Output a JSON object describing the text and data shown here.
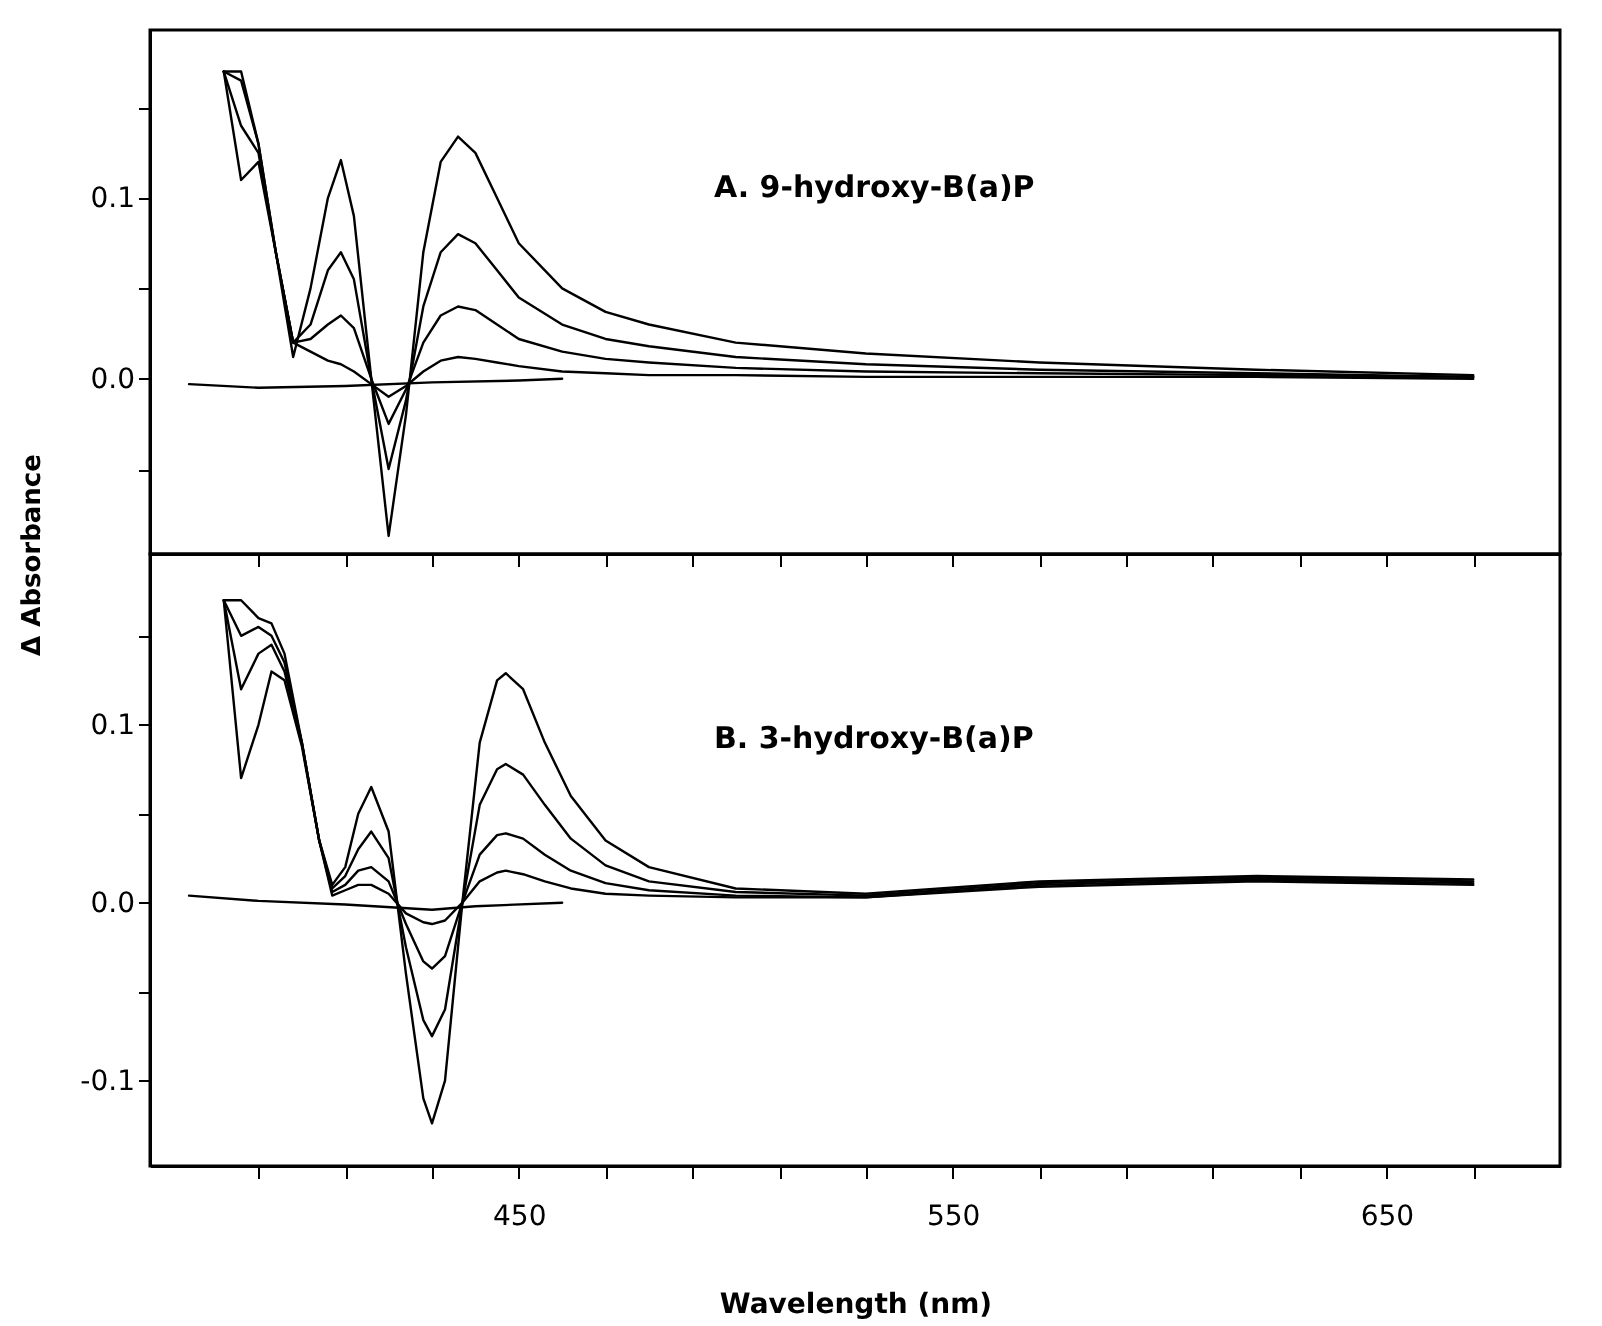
{
  "chart_data": [
    {
      "type": "line",
      "ylabel": "Δ Absorbance",
      "annotations": [
        "A. 9-hydroxy-B(a)P"
      ],
      "xlim": [
        365,
        690
      ],
      "ylim": [
        -0.097,
        0.193
      ],
      "xticks": [
        {
          "value": 390,
          "label": null
        },
        {
          "value": 410,
          "label": null
        },
        {
          "value": 430,
          "label": null
        },
        {
          "value": 450,
          "label": null
        },
        {
          "value": 470,
          "label": null
        },
        {
          "value": 490,
          "label": null
        },
        {
          "value": 510,
          "label": null
        },
        {
          "value": 530,
          "label": null
        },
        {
          "value": 550,
          "label": null
        },
        {
          "value": 570,
          "label": null
        },
        {
          "value": 590,
          "label": null
        },
        {
          "value": 610,
          "label": null
        },
        {
          "value": 630,
          "label": null
        },
        {
          "value": 650,
          "label": null
        },
        {
          "value": 670,
          "label": null
        }
      ],
      "yticks": [
        {
          "value": -0.05,
          "label": null
        },
        {
          "value": 0,
          "label": "0.0"
        },
        {
          "value": 0.05,
          "label": null
        },
        {
          "value": 0.1,
          "label": "0.1"
        },
        {
          "value": 0.15,
          "label": null
        }
      ],
      "tick_labels": "y",
      "grid": false,
      "line_style": "solid",
      "x": [
        382,
        386,
        390,
        394,
        398,
        402,
        406,
        409,
        412,
        416,
        420,
        424,
        428,
        432,
        436,
        440,
        445,
        450,
        460,
        470,
        480,
        500,
        530,
        570,
        620,
        670
      ],
      "series": [
        {
          "color": "#000000",
          "x": [
            374,
            390,
            410,
            430,
            450,
            460
          ],
          "values": [
            -0.003,
            -0.005,
            -0.004,
            -0.002,
            -0.001,
            0
          ]
        },
        {
          "color": "#000000",
          "values": [
            0.17,
            0.11,
            0.12,
            0.07,
            0.02,
            0.015,
            0.01,
            0.008,
            0.004,
            -0.003,
            -0.01,
            -0.004,
            0.004,
            0.01,
            0.012,
            0.011,
            0.009,
            0.007,
            0.004,
            0.003,
            0.002,
            0.002,
            0.001,
            0.001,
            0.001,
            0.0
          ]
        },
        {
          "color": "#000000",
          "values": [
            0.17,
            0.14,
            0.125,
            0.07,
            0.02,
            0.022,
            0.03,
            0.035,
            0.028,
            0.0,
            -0.025,
            -0.006,
            0.02,
            0.035,
            0.04,
            0.038,
            0.03,
            0.022,
            0.015,
            0.011,
            0.009,
            0.006,
            0.004,
            0.003,
            0.002,
            0.001
          ]
        },
        {
          "color": "#000000",
          "values": [
            0.17,
            0.165,
            0.13,
            0.07,
            0.02,
            0.03,
            0.06,
            0.07,
            0.055,
            0.0,
            -0.05,
            -0.012,
            0.04,
            0.07,
            0.08,
            0.075,
            0.06,
            0.045,
            0.03,
            0.022,
            0.018,
            0.012,
            0.008,
            0.005,
            0.003,
            0.001
          ]
        },
        {
          "color": "#000000",
          "values": [
            0.17,
            0.17,
            0.13,
            0.07,
            0.012,
            0.05,
            0.1,
            0.121,
            0.09,
            0.0,
            -0.087,
            -0.02,
            0.07,
            0.12,
            0.134,
            0.125,
            0.1,
            0.075,
            0.05,
            0.037,
            0.03,
            0.02,
            0.014,
            0.009,
            0.005,
            0.002
          ]
        }
      ]
    },
    {
      "type": "line",
      "xlabel": "Wavelength (nm)",
      "annotations": [
        "B. 3-hydroxy-B(a)P"
      ],
      "xlim": [
        365,
        690
      ],
      "ylim": [
        -0.148,
        0.196
      ],
      "xticks": [
        {
          "value": 390,
          "label": null
        },
        {
          "value": 410,
          "label": null
        },
        {
          "value": 430,
          "label": null
        },
        450,
        {
          "value": 470,
          "label": null
        },
        {
          "value": 490,
          "label": null
        },
        {
          "value": 510,
          "label": null
        },
        {
          "value": 530,
          "label": null
        },
        550,
        {
          "value": 570,
          "label": null
        },
        {
          "value": 590,
          "label": null
        },
        {
          "value": 610,
          "label": null
        },
        {
          "value": 630,
          "label": null
        },
        650,
        {
          "value": 670,
          "label": null
        }
      ],
      "yticks": [
        {
          "value": -0.1,
          "label": "-0.1"
        },
        {
          "value": -0.05,
          "label": null
        },
        {
          "value": 0,
          "label": "0.0"
        },
        {
          "value": 0.05,
          "label": null
        },
        {
          "value": 0.1,
          "label": "0.1"
        },
        {
          "value": 0.15,
          "label": null
        }
      ],
      "grid": false,
      "line_style": "solid",
      "x": [
        382,
        386,
        390,
        393,
        396,
        400,
        404,
        407,
        410,
        413,
        416,
        420,
        424,
        428,
        430,
        433,
        437,
        441,
        445,
        447,
        451,
        456,
        462,
        470,
        480,
        500,
        530,
        570,
        620,
        670
      ],
      "series": [
        {
          "color": "#000000",
          "x": [
            374,
            390,
            410,
            430,
            440,
            460
          ],
          "values": [
            0.004,
            0.001,
            -0.001,
            -0.004,
            -0.002,
            0
          ]
        },
        {
          "color": "#000000",
          "values": [
            0.17,
            0.07,
            0.1,
            0.13,
            0.125,
            0.088,
            0.035,
            0.004,
            0.007,
            0.01,
            0.01,
            0.005,
            -0.006,
            -0.011,
            -0.012,
            -0.01,
            0.0,
            0.012,
            0.017,
            0.018,
            0.016,
            0.012,
            0.008,
            0.005,
            0.004,
            0.003,
            0.003,
            0.009,
            0.012,
            0.01
          ]
        },
        {
          "color": "#000000",
          "values": [
            0.17,
            0.12,
            0.14,
            0.145,
            0.13,
            0.09,
            0.035,
            0.006,
            0.01,
            0.018,
            0.02,
            0.012,
            -0.012,
            -0.033,
            -0.037,
            -0.03,
            0.0,
            0.027,
            0.038,
            0.039,
            0.036,
            0.027,
            0.018,
            0.011,
            0.007,
            0.004,
            0.003,
            0.01,
            0.013,
            0.011
          ]
        },
        {
          "color": "#000000",
          "values": [
            0.17,
            0.15,
            0.155,
            0.15,
            0.135,
            0.09,
            0.035,
            0.008,
            0.015,
            0.03,
            0.04,
            0.025,
            -0.025,
            -0.066,
            -0.075,
            -0.06,
            0.0,
            0.055,
            0.075,
            0.078,
            0.072,
            0.055,
            0.036,
            0.021,
            0.012,
            0.006,
            0.004,
            0.011,
            0.014,
            0.012
          ]
        },
        {
          "color": "#000000",
          "values": [
            0.17,
            0.17,
            0.16,
            0.157,
            0.14,
            0.09,
            0.035,
            0.01,
            0.02,
            0.05,
            0.065,
            0.04,
            -0.04,
            -0.11,
            -0.124,
            -0.1,
            0.0,
            0.09,
            0.125,
            0.129,
            0.12,
            0.09,
            0.06,
            0.035,
            0.02,
            0.008,
            0.005,
            0.012,
            0.015,
            0.013
          ]
        }
      ]
    }
  ]
}
